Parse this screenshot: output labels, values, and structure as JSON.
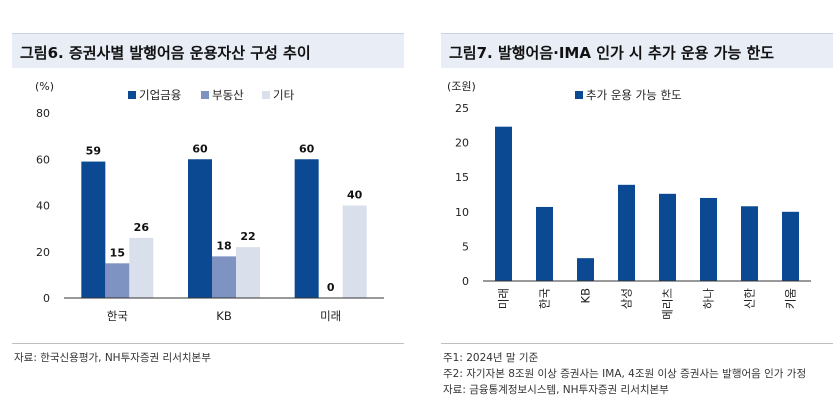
{
  "left": {
    "title": "그림6. 증권사별 발행어음 운용자산 구성 추이",
    "source": "자료: 한국신용평가, NH투자증권 리서치본부",
    "chart_data": {
      "type": "bar",
      "unit_label": "(%)",
      "categories": [
        "한국",
        "KB",
        "미래"
      ],
      "series": [
        {
          "name": "기업금융",
          "color": "#0b4a92",
          "values": [
            59,
            60,
            60
          ]
        },
        {
          "name": "부동산",
          "color": "#7f93c2",
          "values": [
            15,
            18,
            0
          ]
        },
        {
          "name": "기타",
          "color": "#d9e0ec",
          "values": [
            26,
            22,
            40
          ]
        }
      ],
      "ylim": [
        0,
        80
      ],
      "yticks": [
        "0",
        "20",
        "40",
        "60",
        "80"
      ],
      "value_labels": [
        [
          "59",
          "15",
          "26"
        ],
        [
          "60",
          "18",
          "22"
        ],
        [
          "60",
          "0",
          "40"
        ]
      ],
      "grid": false,
      "legend": "top"
    }
  },
  "right": {
    "title": "그림7. 발행어음·IMA 인가 시 추가 운용 가능 한도",
    "notes": [
      "주1: 2024년 말 기준",
      "주2: 자기자본 8조원 이상 증권사는 IMA, 4조원 이상 증권사는 발행어음 인가 가정",
      "자료: 금융통계정보시스템, NH투자증권 리서치본부"
    ],
    "chart_data": {
      "type": "bar",
      "unit_label": "(조원)",
      "categories": [
        "미래",
        "한국",
        "KB",
        "삼성",
        "메리츠",
        "하나",
        "신한",
        "키움"
      ],
      "series": [
        {
          "name": "추가 운용 가능 한도",
          "color": "#0b4a92",
          "values": [
            22.3,
            10.7,
            3.3,
            13.9,
            12.6,
            12.0,
            10.8,
            10.0
          ]
        }
      ],
      "ylim": [
        0,
        25
      ],
      "yticks": [
        "0",
        "5",
        "10",
        "15",
        "20",
        "25"
      ],
      "grid": false,
      "legend": "top"
    }
  }
}
